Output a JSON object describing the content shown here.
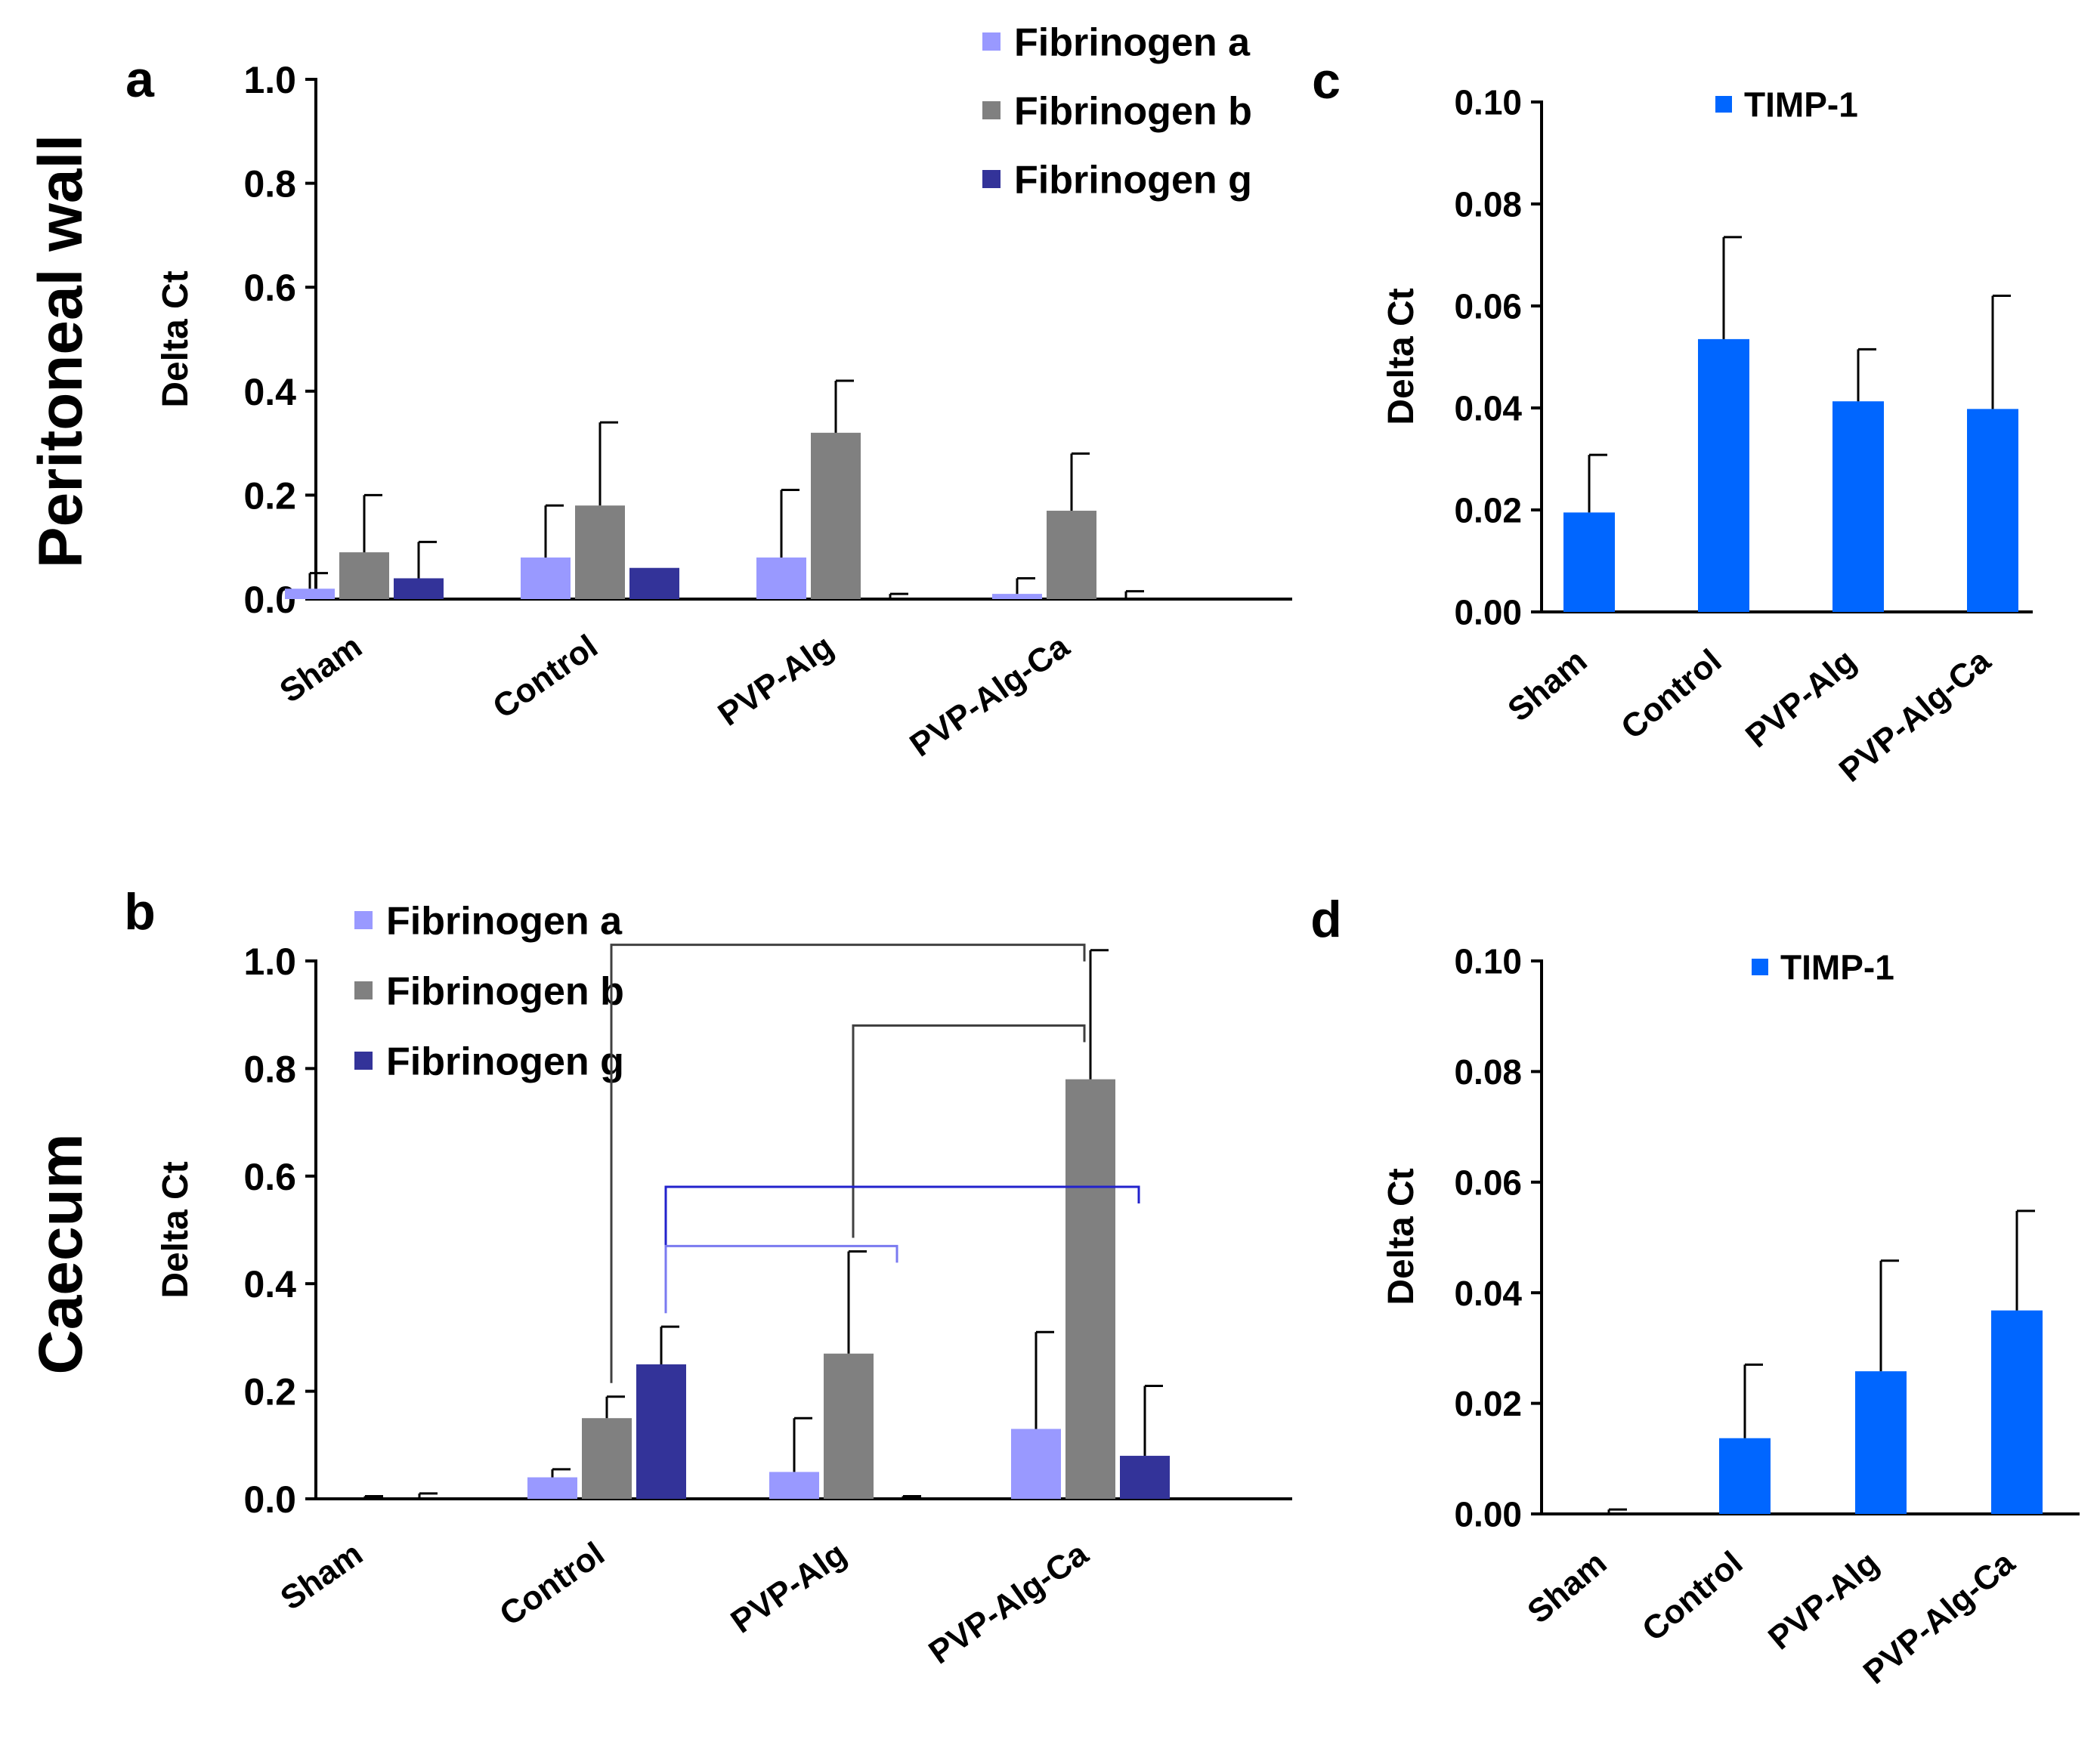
{
  "row_labels": [
    "Peritoneal wall",
    "Caecum"
  ],
  "colors": {
    "fibrinogen_a": "#9999ff",
    "fibrinogen_b": "#808080",
    "fibrinogen_g": "#333399",
    "timp1": "#0066ff",
    "bracket_grey": "#404040",
    "bracket_blue": "#2222cc",
    "bracket_lightblue": "#7a7af0"
  },
  "chart_data": [
    {
      "panel": "a",
      "type": "bar",
      "title": "",
      "ylabel": "Delta Ct",
      "xlabel": "",
      "ylim": [
        0,
        1.0
      ],
      "yticks": [
        0,
        0.2,
        0.4,
        0.6,
        0.8,
        1.0
      ],
      "ytick_labels": [
        "0.0",
        "0.2",
        "0.4",
        "0.6",
        "0.8",
        "1.0"
      ],
      "categories": [
        "Sham",
        "Control",
        "PVP-Alg",
        "PVP-Alg-Ca"
      ],
      "legend_position": "top-right",
      "series": [
        {
          "name": "Fibrinogen a",
          "color_key": "fibrinogen_a",
          "values": [
            0.02,
            0.08,
            0.08,
            0.01
          ],
          "errors": [
            0.03,
            0.1,
            0.13,
            0.03
          ]
        },
        {
          "name": "Fibrinogen b",
          "color_key": "fibrinogen_b",
          "values": [
            0.09,
            0.18,
            0.32,
            0.17
          ],
          "errors": [
            0.11,
            0.16,
            0.1,
            0.11
          ]
        },
        {
          "name": "Fibrinogen g",
          "color_key": "fibrinogen_g",
          "values": [
            0.04,
            0.06,
            0.0,
            0.0
          ],
          "errors": [
            0.07,
            0.0,
            0.01,
            0.015
          ]
        }
      ]
    },
    {
      "panel": "b",
      "type": "bar",
      "title": "",
      "ylabel": "Delta Ct",
      "xlabel": "",
      "ylim": [
        0,
        1.0
      ],
      "yticks": [
        0,
        0.2,
        0.4,
        0.6,
        0.8,
        1.0
      ],
      "ytick_labels": [
        "0.0",
        "0.2",
        "0.4",
        "0.6",
        "0.8",
        "1.0"
      ],
      "categories": [
        "Sham",
        "Control",
        "PVP-Alg",
        "PVP-Alg-Ca"
      ],
      "legend_position": "top-left",
      "series": [
        {
          "name": "Fibrinogen a",
          "color_key": "fibrinogen_a",
          "values": [
            0.0,
            0.04,
            0.05,
            0.13
          ],
          "errors": [
            0.0,
            0.015,
            0.1,
            0.18
          ]
        },
        {
          "name": "Fibrinogen b",
          "color_key": "fibrinogen_b",
          "values": [
            0.0,
            0.15,
            0.27,
            0.78
          ],
          "errors": [
            0.005,
            0.04,
            0.19,
            0.24
          ]
        },
        {
          "name": "Fibrinogen g",
          "color_key": "fibrinogen_g",
          "values": [
            0.0,
            0.25,
            0.0,
            0.08
          ],
          "errors": [
            0.01,
            0.07,
            0.005,
            0.13
          ]
        }
      ],
      "significance_brackets": [
        {
          "from": [
            "Control",
            "Fibrinogen b"
          ],
          "to": [
            "PVP-Alg-Ca",
            "Fibrinogen b"
          ],
          "level": 1.03,
          "color_key": "bracket_grey"
        },
        {
          "from": [
            "PVP-Alg",
            "Fibrinogen b"
          ],
          "to": [
            "PVP-Alg-Ca",
            "Fibrinogen b"
          ],
          "level": 0.88,
          "color_key": "bracket_grey"
        },
        {
          "from": [
            "Control",
            "Fibrinogen g"
          ],
          "to": [
            "PVP-Alg-Ca",
            "Fibrinogen g"
          ],
          "level": 0.58,
          "color_key": "bracket_blue"
        },
        {
          "from": [
            "Control",
            "Fibrinogen g"
          ],
          "to": [
            "PVP-Alg",
            "Fibrinogen g"
          ],
          "level": 0.47,
          "color_key": "bracket_lightblue"
        }
      ]
    },
    {
      "panel": "c",
      "type": "bar",
      "title": "",
      "ylabel": "Delta Ct",
      "xlabel": "",
      "ylim": [
        0,
        0.1
      ],
      "yticks": [
        0,
        0.02,
        0.04,
        0.06,
        0.08,
        0.1
      ],
      "ytick_labels": [
        "0.00",
        "0.02",
        "0.04",
        "0.06",
        "0.08",
        "0.10"
      ],
      "categories": [
        "Sham",
        "Control",
        "PVP-Alg",
        "PVP-Alg-Ca"
      ],
      "legend_position": "top-center",
      "series": [
        {
          "name": "TIMP-1",
          "color_key": "timp1",
          "values": [
            0.0195,
            0.0535,
            0.0413,
            0.0398
          ],
          "errors": [
            0.0113,
            0.02,
            0.0102,
            0.0222
          ]
        }
      ]
    },
    {
      "panel": "d",
      "type": "bar",
      "title": "",
      "ylabel": "Delta Ct",
      "xlabel": "",
      "ylim": [
        0,
        0.1
      ],
      "yticks": [
        0,
        0.02,
        0.04,
        0.06,
        0.08,
        0.1
      ],
      "ytick_labels": [
        "0.00",
        "0.02",
        "0.04",
        "0.06",
        "0.08",
        "0.10"
      ],
      "categories": [
        "Sham",
        "Control",
        "PVP-Alg",
        "PVP-Alg-Ca"
      ],
      "legend_position": "top-center",
      "series": [
        {
          "name": "TIMP-1",
          "color_key": "timp1",
          "values": [
            0.0,
            0.0137,
            0.0258,
            0.0368
          ],
          "errors": [
            0.0008,
            0.0133,
            0.02,
            0.018
          ]
        }
      ]
    }
  ]
}
